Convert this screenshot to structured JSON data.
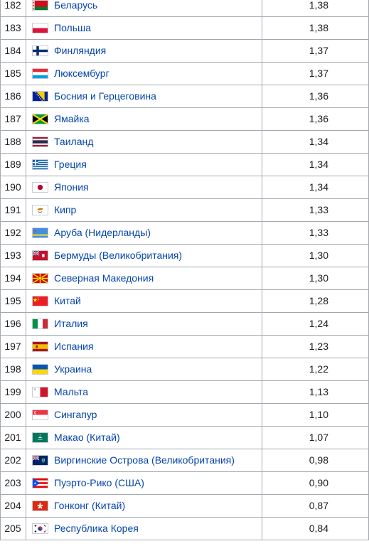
{
  "table": {
    "rows": [
      {
        "rank": "182",
        "country": "Беларусь",
        "value": "1,38",
        "flag": "belarus"
      },
      {
        "rank": "183",
        "country": "Польша",
        "value": "1,38",
        "flag": "poland"
      },
      {
        "rank": "184",
        "country": "Финляндия",
        "value": "1,37",
        "flag": "finland"
      },
      {
        "rank": "185",
        "country": "Люксембург",
        "value": "1,37",
        "flag": "luxembourg"
      },
      {
        "rank": "186",
        "country": "Босния и Герцеговина",
        "value": "1,36",
        "flag": "bosnia"
      },
      {
        "rank": "187",
        "country": "Ямайка",
        "value": "1,36",
        "flag": "jamaica"
      },
      {
        "rank": "188",
        "country": "Таиланд",
        "value": "1,34",
        "flag": "thailand"
      },
      {
        "rank": "189",
        "country": "Греция",
        "value": "1,34",
        "flag": "greece"
      },
      {
        "rank": "190",
        "country": "Япония",
        "value": "1,34",
        "flag": "japan"
      },
      {
        "rank": "191",
        "country": "Кипр",
        "value": "1,33",
        "flag": "cyprus"
      },
      {
        "rank": "192",
        "country": "Аруба (Нидерланды)",
        "value": "1,33",
        "flag": "aruba"
      },
      {
        "rank": "193",
        "country": "Бермуды (Великобритания)",
        "value": "1,30",
        "flag": "bermuda"
      },
      {
        "rank": "194",
        "country": "Северная Македония",
        "value": "1,30",
        "flag": "north-macedonia"
      },
      {
        "rank": "195",
        "country": "Китай",
        "value": "1,28",
        "flag": "china"
      },
      {
        "rank": "196",
        "country": "Италия",
        "value": "1,24",
        "flag": "italy"
      },
      {
        "rank": "197",
        "country": "Испания",
        "value": "1,23",
        "flag": "spain"
      },
      {
        "rank": "198",
        "country": "Украина",
        "value": "1,22",
        "flag": "ukraine"
      },
      {
        "rank": "199",
        "country": "Мальта",
        "value": "1,13",
        "flag": "malta"
      },
      {
        "rank": "200",
        "country": "Сингапур",
        "value": "1,10",
        "flag": "singapore"
      },
      {
        "rank": "201",
        "country": "Макао (Китай)",
        "value": "1,07",
        "flag": "macau"
      },
      {
        "rank": "202",
        "country": "Виргинские Острова (Великобритания)",
        "value": "0,98",
        "flag": "bvi"
      },
      {
        "rank": "203",
        "country": "Пуэрто-Рико (США)",
        "value": "0,90",
        "flag": "puerto-rico"
      },
      {
        "rank": "204",
        "country": "Гонконг (Китай)",
        "value": "0,87",
        "flag": "hong-kong"
      },
      {
        "rank": "205",
        "country": "Республика Корея",
        "value": "0,84",
        "flag": "south-korea"
      }
    ]
  },
  "colors": {
    "link": "#0645ad",
    "text": "#202122",
    "border": "#a2a9b1"
  }
}
